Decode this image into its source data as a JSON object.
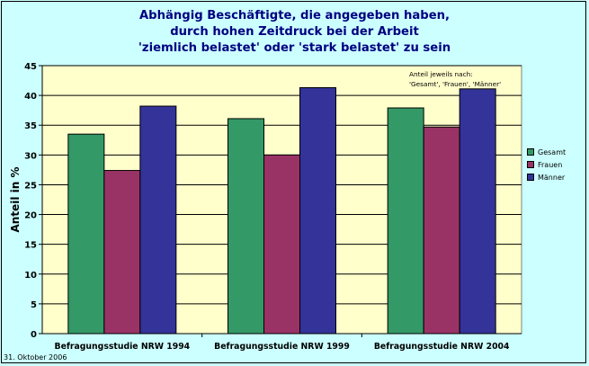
{
  "footer": {
    "date": "31. Oktober 2006"
  },
  "chart_data": {
    "type": "bar",
    "title_lines": [
      "Abhängig Beschäftigte, die angegeben haben,",
      "durch hohen Zeitdruck bei der Arbeit",
      "'ziemlich belastet' oder 'stark belastet' zu sein"
    ],
    "xlabel": "",
    "ylabel": "Anteil in %",
    "ylim": [
      0,
      45
    ],
    "yticks": [
      0,
      5,
      10,
      15,
      20,
      25,
      30,
      35,
      40,
      45
    ],
    "grid": true,
    "legend_position": "right",
    "note_lines": [
      "Anteil jeweils nach:",
      "'Gesamt', 'Frauen', 'Männer'"
    ],
    "categories": [
      "Befragungsstudie NRW 1994",
      "Befragungsstudie NRW 1999",
      "Befragungsstudie NRW 2004"
    ],
    "series": [
      {
        "name": "Gesamt",
        "values": [
          33.5,
          36.1,
          37.9
        ],
        "color": "#339966"
      },
      {
        "name": "Frauen",
        "values": [
          27.4,
          30.0,
          34.7
        ],
        "color": "#993366"
      },
      {
        "name": "Männer",
        "values": [
          38.2,
          41.3,
          41.1
        ],
        "color": "#333399"
      }
    ],
    "colors": {
      "plot_background": "#ffffcc",
      "page_background": "#ccffff",
      "title": "#000080"
    }
  }
}
